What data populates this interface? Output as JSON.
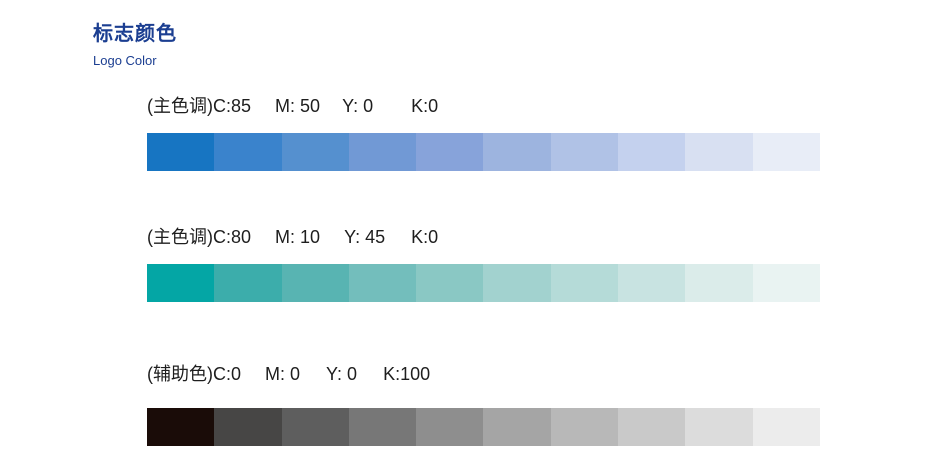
{
  "header": {
    "title": "标志颜色",
    "subtitle": "Logo Color"
  },
  "groups": [
    {
      "prefix": "(主色调)",
      "c": "C:85",
      "m": "M: 50",
      "y": "Y: 0",
      "k": "K:0",
      "swatches": [
        "#1775c2",
        "#3a83cc",
        "#5590cf",
        "#7199d5",
        "#87a3da",
        "#9db4df",
        "#b0c2e6",
        "#c4d1ee",
        "#d8e0f2",
        "#e8edf7"
      ]
    },
    {
      "prefix": "(主色调)",
      "c": "C:80",
      "m": "M: 10",
      "y": "Y: 45",
      "k": "K:0",
      "swatches": [
        "#04a6a5",
        "#3cadab",
        "#58b4b2",
        "#73bebc",
        "#8ac8c4",
        "#a2d2cf",
        "#b5dbd8",
        "#c8e3e1",
        "#dbecea",
        "#e9f3f2"
      ]
    },
    {
      "prefix": "(辅助色)",
      "c": "C:0",
      "m": "M: 0",
      "y": "Y: 0",
      "k": "K:100",
      "swatches": [
        "#1a0c08",
        "#474645",
        "#5e5e5e",
        "#777777",
        "#8e8e8e",
        "#a5a5a5",
        "#b8b8b8",
        "#c9c9c9",
        "#dcdcdc",
        "#ececec"
      ]
    }
  ]
}
